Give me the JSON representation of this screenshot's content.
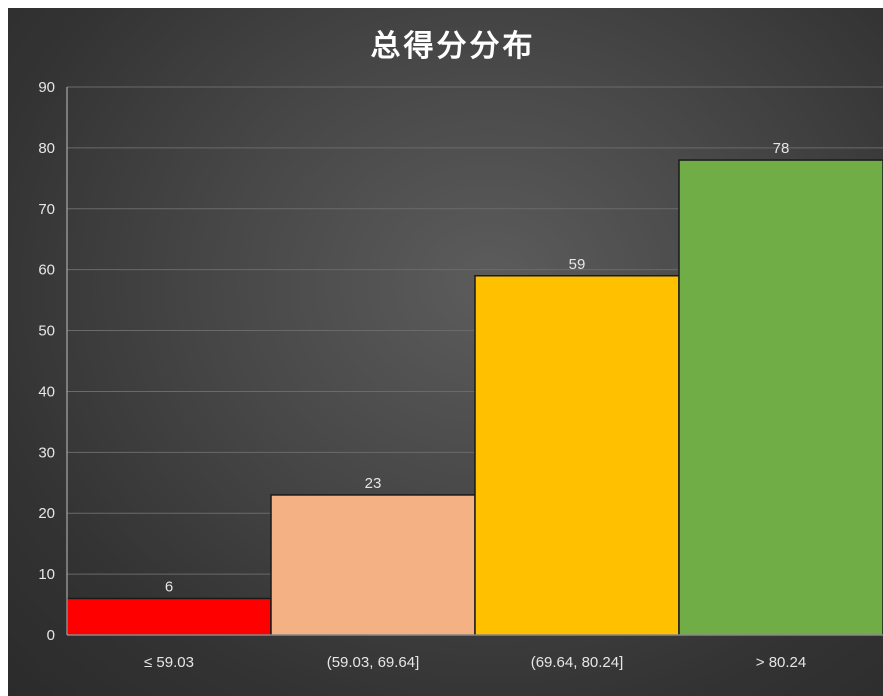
{
  "chart_data": {
    "type": "bar",
    "title": "总得分分布",
    "categories": [
      "≤ 59.03",
      "(59.03, 69.64]",
      "(69.64, 80.24]",
      "> 80.24"
    ],
    "values": [
      6,
      23,
      59,
      78
    ],
    "data_labels": [
      "6",
      "23",
      "59",
      "78"
    ],
    "bar_colors": [
      "#ff0000",
      "#f4b183",
      "#ffc000",
      "#70ad47"
    ],
    "ylim": [
      0,
      90
    ],
    "yticks": [
      0,
      10,
      20,
      30,
      40,
      50,
      60,
      70,
      80,
      90
    ],
    "ytick_labels": [
      "0",
      "10",
      "20",
      "30",
      "40",
      "50",
      "60",
      "70",
      "80",
      "90"
    ],
    "grid": true,
    "legend": "none",
    "background": "#474747"
  }
}
